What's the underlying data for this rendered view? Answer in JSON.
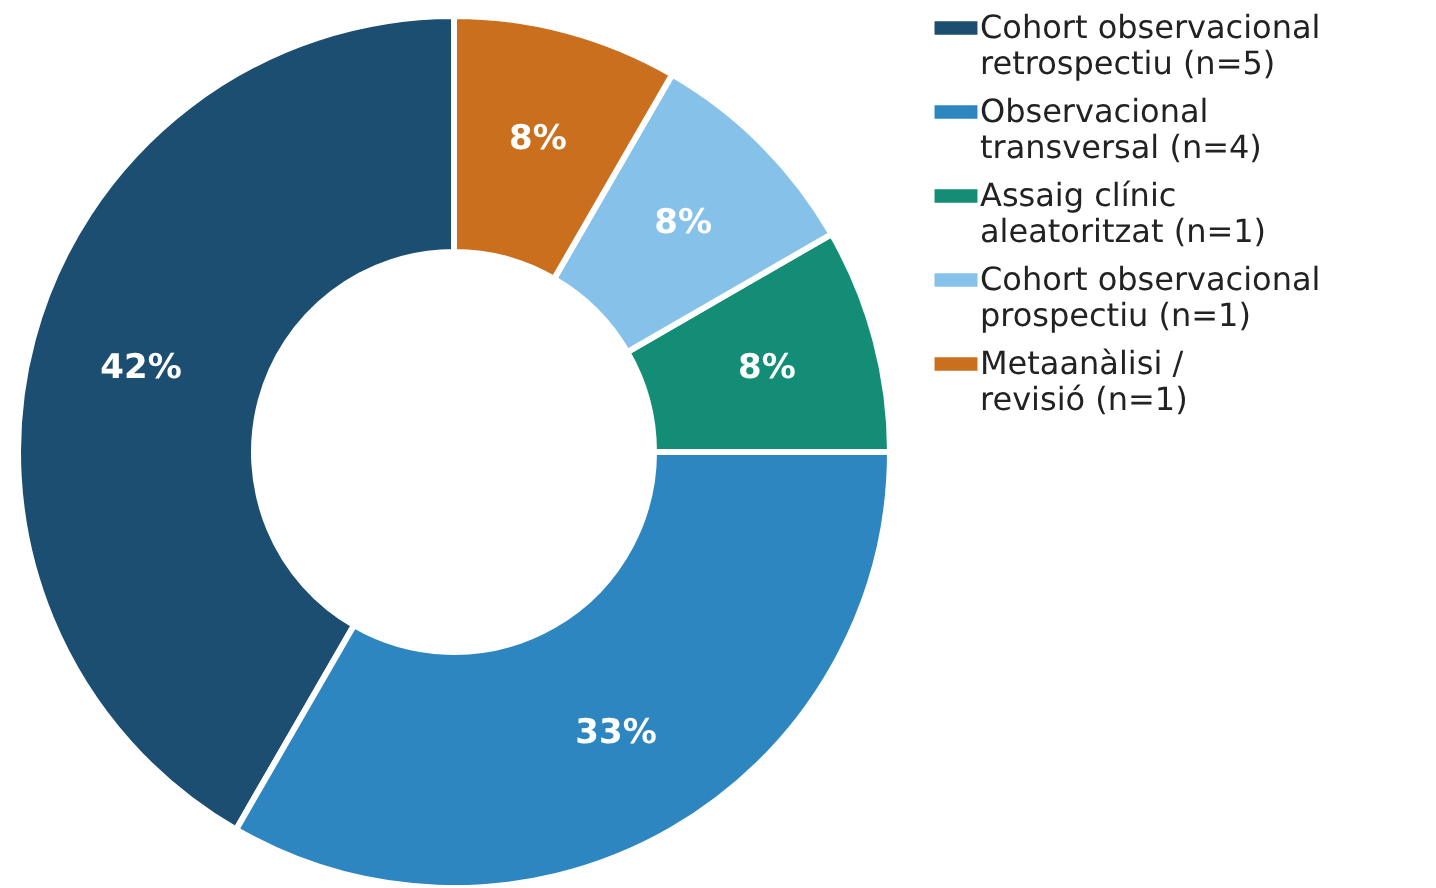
{
  "chart_data": {
    "type": "donut",
    "categories": [
      "Cohort observacional\nretrospectiu  (n=5)",
      "Observacional\ntransversal  (n=4)",
      "Assaig clínic\naleatoritzat  (n=1)",
      "Cohort observacional\nprospectiu  (n=1)",
      "Metaanàlisi /\nrevisió  (n=1)"
    ],
    "values": [
      41.67,
      33.33,
      8.33,
      8.33,
      8.34
    ],
    "value_labels": [
      "42%",
      "33%",
      "8%",
      "8%",
      "8%"
    ],
    "colors": [
      "#1c4e72",
      "#2e86c1",
      "#138d75",
      "#85c1e9",
      "#ca6f1e"
    ],
    "legend": "right"
  }
}
